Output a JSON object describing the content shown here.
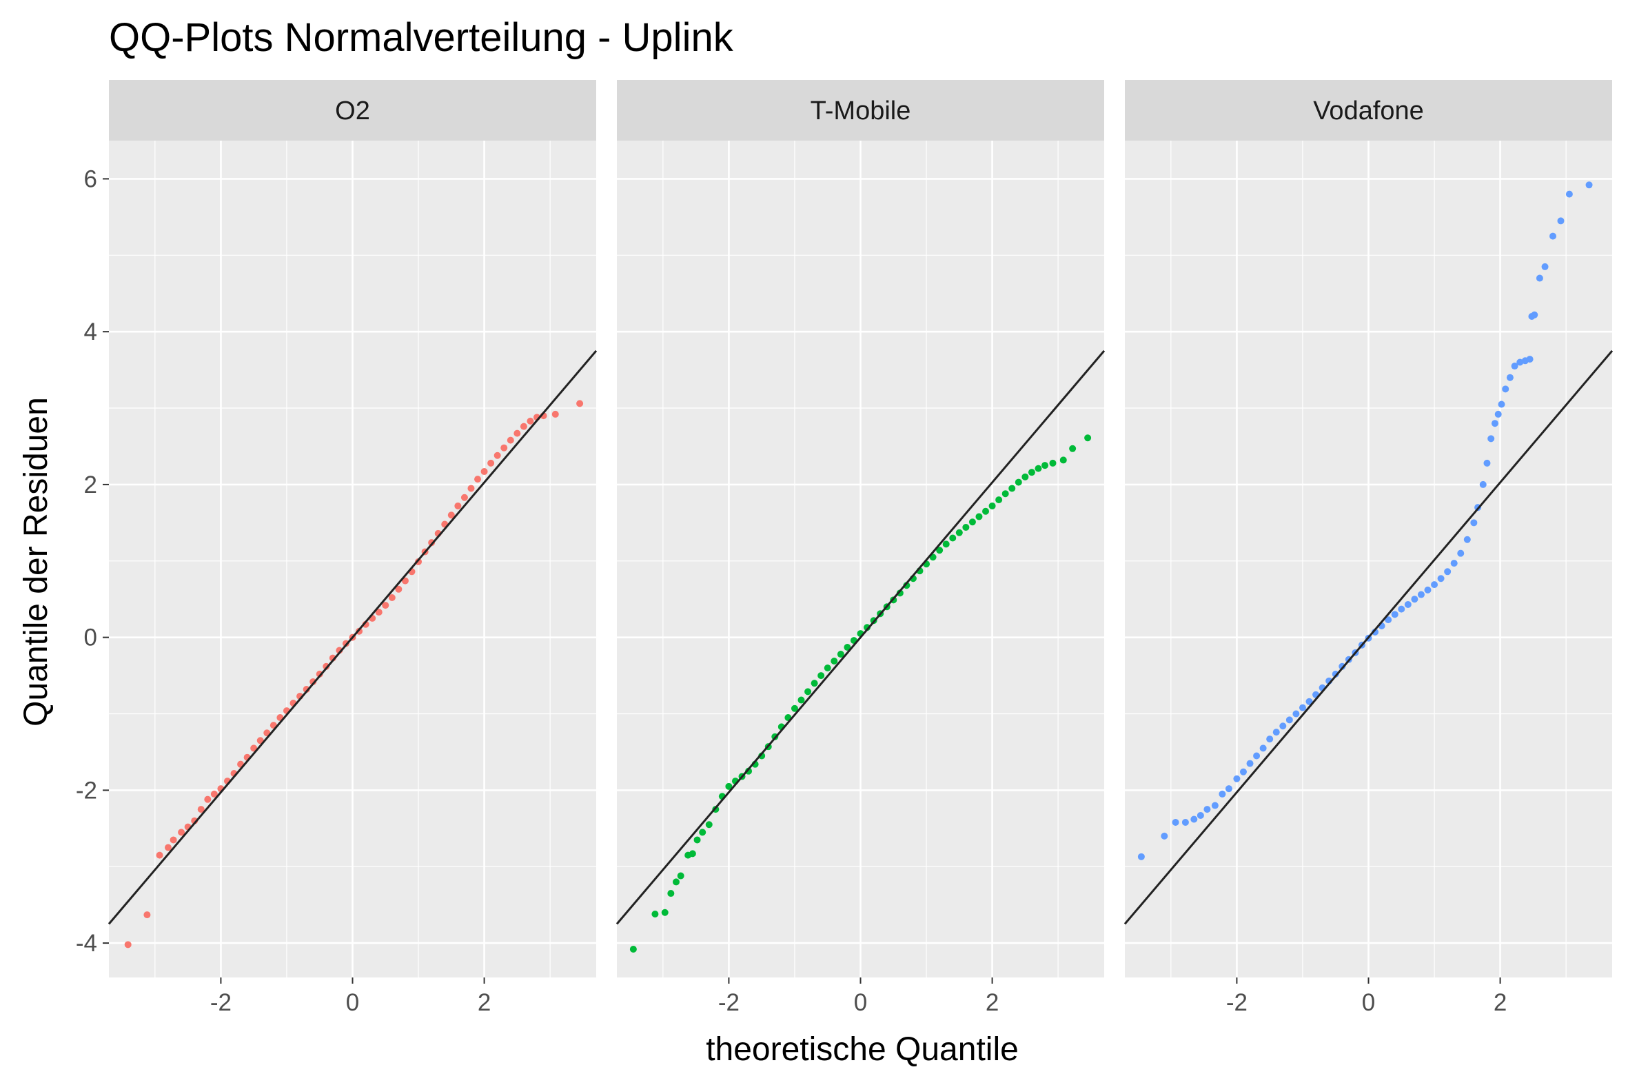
{
  "chart_data": {
    "type": "scatter",
    "title": "QQ-Plots Normalverteilung - Uplink",
    "xlabel": "theoretische Quantile",
    "ylabel": "Quantile der Residuen",
    "xlim": [
      -3.7,
      3.7
    ],
    "ylim": [
      -4.45,
      6.5
    ],
    "x_ticks": [
      -2,
      0,
      2
    ],
    "y_ticks": [
      -4,
      -2,
      0,
      2,
      4,
      6
    ],
    "grid": true,
    "legend": "none",
    "panels": [
      {
        "name": "O2",
        "color": "#F8766D",
        "ref_line": {
          "x": [
            -3.7,
            3.7
          ],
          "y": [
            -3.75,
            3.75
          ]
        },
        "points": [
          [
            -3.41,
            -4.02
          ],
          [
            -3.12,
            -3.63
          ],
          [
            -2.93,
            -2.85
          ],
          [
            -2.8,
            -2.75
          ],
          [
            -2.72,
            -2.65
          ],
          [
            -2.6,
            -2.55
          ],
          [
            -2.5,
            -2.48
          ],
          [
            -2.4,
            -2.4
          ],
          [
            -2.3,
            -2.25
          ],
          [
            -2.2,
            -2.12
          ],
          [
            -2.1,
            -2.05
          ],
          [
            -2.0,
            -1.98
          ],
          [
            -1.9,
            -1.88
          ],
          [
            -1.8,
            -1.78
          ],
          [
            -1.7,
            -1.66
          ],
          [
            -1.6,
            -1.57
          ],
          [
            -1.5,
            -1.45
          ],
          [
            -1.4,
            -1.35
          ],
          [
            -1.3,
            -1.25
          ],
          [
            -1.2,
            -1.15
          ],
          [
            -1.1,
            -1.05
          ],
          [
            -1.0,
            -0.96
          ],
          [
            -0.9,
            -0.86
          ],
          [
            -0.8,
            -0.77
          ],
          [
            -0.7,
            -0.68
          ],
          [
            -0.6,
            -0.58
          ],
          [
            -0.5,
            -0.48
          ],
          [
            -0.4,
            -0.38
          ],
          [
            -0.3,
            -0.27
          ],
          [
            -0.2,
            -0.17
          ],
          [
            -0.1,
            -0.08
          ],
          [
            0.0,
            0.0
          ],
          [
            0.1,
            0.08
          ],
          [
            0.2,
            0.17
          ],
          [
            0.3,
            0.25
          ],
          [
            0.4,
            0.33
          ],
          [
            0.5,
            0.42
          ],
          [
            0.6,
            0.52
          ],
          [
            0.7,
            0.63
          ],
          [
            0.8,
            0.74
          ],
          [
            0.9,
            0.86
          ],
          [
            1.0,
            0.99
          ],
          [
            1.1,
            1.12
          ],
          [
            1.2,
            1.24
          ],
          [
            1.3,
            1.36
          ],
          [
            1.4,
            1.48
          ],
          [
            1.5,
            1.6
          ],
          [
            1.6,
            1.72
          ],
          [
            1.7,
            1.83
          ],
          [
            1.8,
            1.95
          ],
          [
            1.9,
            2.07
          ],
          [
            2.0,
            2.17
          ],
          [
            2.1,
            2.28
          ],
          [
            2.2,
            2.38
          ],
          [
            2.3,
            2.48
          ],
          [
            2.4,
            2.58
          ],
          [
            2.5,
            2.67
          ],
          [
            2.6,
            2.76
          ],
          [
            2.7,
            2.83
          ],
          [
            2.8,
            2.88
          ],
          [
            2.9,
            2.9
          ],
          [
            3.08,
            2.92
          ],
          [
            3.45,
            3.06
          ]
        ]
      },
      {
        "name": "T-Mobile",
        "color": "#00BA38",
        "ref_line": {
          "x": [
            -3.7,
            3.7
          ],
          "y": [
            -3.75,
            3.75
          ]
        },
        "points": [
          [
            -3.45,
            -4.08
          ],
          [
            -3.12,
            -3.62
          ],
          [
            -2.97,
            -3.6
          ],
          [
            -2.88,
            -3.35
          ],
          [
            -2.8,
            -3.2
          ],
          [
            -2.73,
            -3.12
          ],
          [
            -2.62,
            -2.85
          ],
          [
            -2.55,
            -2.83
          ],
          [
            -2.48,
            -2.65
          ],
          [
            -2.4,
            -2.55
          ],
          [
            -2.3,
            -2.45
          ],
          [
            -2.2,
            -2.25
          ],
          [
            -2.1,
            -2.08
          ],
          [
            -2.0,
            -1.95
          ],
          [
            -1.9,
            -1.88
          ],
          [
            -1.8,
            -1.82
          ],
          [
            -1.7,
            -1.75
          ],
          [
            -1.6,
            -1.66
          ],
          [
            -1.5,
            -1.55
          ],
          [
            -1.4,
            -1.43
          ],
          [
            -1.3,
            -1.3
          ],
          [
            -1.2,
            -1.17
          ],
          [
            -1.1,
            -1.05
          ],
          [
            -1.0,
            -0.93
          ],
          [
            -0.9,
            -0.82
          ],
          [
            -0.8,
            -0.71
          ],
          [
            -0.7,
            -0.6
          ],
          [
            -0.6,
            -0.5
          ],
          [
            -0.5,
            -0.4
          ],
          [
            -0.4,
            -0.31
          ],
          [
            -0.3,
            -0.22
          ],
          [
            -0.2,
            -0.13
          ],
          [
            -0.1,
            -0.04
          ],
          [
            0.0,
            0.05
          ],
          [
            0.1,
            0.13
          ],
          [
            0.2,
            0.22
          ],
          [
            0.3,
            0.31
          ],
          [
            0.4,
            0.4
          ],
          [
            0.5,
            0.49
          ],
          [
            0.6,
            0.58
          ],
          [
            0.7,
            0.68
          ],
          [
            0.8,
            0.77
          ],
          [
            0.9,
            0.87
          ],
          [
            1.0,
            0.96
          ],
          [
            1.1,
            1.05
          ],
          [
            1.2,
            1.14
          ],
          [
            1.3,
            1.22
          ],
          [
            1.4,
            1.3
          ],
          [
            1.5,
            1.37
          ],
          [
            1.6,
            1.44
          ],
          [
            1.7,
            1.51
          ],
          [
            1.8,
            1.58
          ],
          [
            1.9,
            1.65
          ],
          [
            2.0,
            1.72
          ],
          [
            2.1,
            1.8
          ],
          [
            2.2,
            1.88
          ],
          [
            2.3,
            1.95
          ],
          [
            2.4,
            2.03
          ],
          [
            2.5,
            2.1
          ],
          [
            2.6,
            2.16
          ],
          [
            2.7,
            2.21
          ],
          [
            2.8,
            2.25
          ],
          [
            2.92,
            2.28
          ],
          [
            3.08,
            2.32
          ],
          [
            3.22,
            2.47
          ],
          [
            3.45,
            2.61
          ]
        ]
      },
      {
        "name": "Vodafone",
        "color": "#619CFF",
        "ref_line": {
          "x": [
            -3.7,
            3.7
          ],
          "y": [
            -3.75,
            3.75
          ]
        },
        "points": [
          [
            -3.45,
            -2.87
          ],
          [
            -3.1,
            -2.6
          ],
          [
            -2.93,
            -2.42
          ],
          [
            -2.78,
            -2.42
          ],
          [
            -2.65,
            -2.38
          ],
          [
            -2.55,
            -2.33
          ],
          [
            -2.45,
            -2.25
          ],
          [
            -2.33,
            -2.2
          ],
          [
            -2.22,
            -2.05
          ],
          [
            -2.12,
            -1.98
          ],
          [
            -2.0,
            -1.85
          ],
          [
            -1.9,
            -1.76
          ],
          [
            -1.8,
            -1.65
          ],
          [
            -1.7,
            -1.55
          ],
          [
            -1.6,
            -1.45
          ],
          [
            -1.5,
            -1.33
          ],
          [
            -1.4,
            -1.24
          ],
          [
            -1.3,
            -1.16
          ],
          [
            -1.2,
            -1.08
          ],
          [
            -1.1,
            -1.0
          ],
          [
            -1.0,
            -0.92
          ],
          [
            -0.9,
            -0.84
          ],
          [
            -0.8,
            -0.75
          ],
          [
            -0.7,
            -0.66
          ],
          [
            -0.6,
            -0.57
          ],
          [
            -0.5,
            -0.48
          ],
          [
            -0.4,
            -0.38
          ],
          [
            -0.3,
            -0.29
          ],
          [
            -0.2,
            -0.2
          ],
          [
            -0.1,
            -0.1
          ],
          [
            0.0,
            -0.01
          ],
          [
            0.1,
            0.07
          ],
          [
            0.2,
            0.15
          ],
          [
            0.3,
            0.23
          ],
          [
            0.4,
            0.3
          ],
          [
            0.5,
            0.37
          ],
          [
            0.6,
            0.43
          ],
          [
            0.7,
            0.5
          ],
          [
            0.8,
            0.56
          ],
          [
            0.9,
            0.62
          ],
          [
            1.0,
            0.69
          ],
          [
            1.1,
            0.77
          ],
          [
            1.2,
            0.86
          ],
          [
            1.3,
            0.97
          ],
          [
            1.4,
            1.1
          ],
          [
            1.5,
            1.28
          ],
          [
            1.6,
            1.5
          ],
          [
            1.66,
            1.7
          ],
          [
            1.74,
            2.0
          ],
          [
            1.8,
            2.28
          ],
          [
            1.86,
            2.6
          ],
          [
            1.92,
            2.8
          ],
          [
            1.97,
            2.92
          ],
          [
            2.02,
            3.05
          ],
          [
            2.08,
            3.25
          ],
          [
            2.15,
            3.4
          ],
          [
            2.22,
            3.55
          ],
          [
            2.3,
            3.6
          ],
          [
            2.38,
            3.62
          ],
          [
            2.45,
            3.64
          ],
          [
            2.48,
            4.2
          ],
          [
            2.52,
            4.22
          ],
          [
            2.6,
            4.7
          ],
          [
            2.68,
            4.85
          ],
          [
            2.8,
            5.25
          ],
          [
            2.92,
            5.45
          ],
          [
            3.05,
            5.8
          ],
          [
            3.35,
            5.92
          ]
        ]
      }
    ]
  }
}
